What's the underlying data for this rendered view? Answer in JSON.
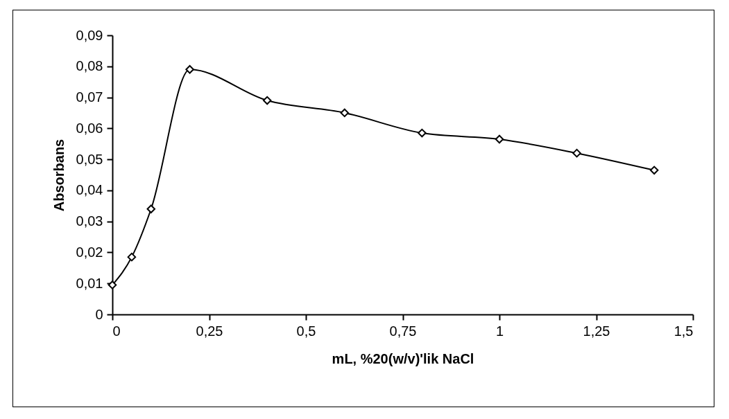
{
  "chart_data": {
    "type": "line",
    "xlabel": "mL, %20(w/v)'lik NaCl",
    "ylabel": "Absorbans",
    "x": [
      0,
      0.05,
      0.1,
      0.2,
      0.4,
      0.6,
      0.8,
      1.0,
      1.2,
      1.4
    ],
    "series": [
      {
        "color": "#000000",
        "values": [
          0.0095,
          0.0185,
          0.034,
          0.079,
          0.069,
          0.065,
          0.0585,
          0.0565,
          0.052,
          0.0465
        ]
      }
    ],
    "xlim": [
      0,
      1.5
    ],
    "xticks": [
      0,
      {
        "value": 0.25,
        "label": "0,25"
      },
      {
        "value": 0.5,
        "label": "0,5"
      },
      {
        "value": 0.75,
        "label": "0,75"
      },
      1,
      {
        "value": 1.25,
        "label": "1,25"
      },
      {
        "value": 1.5,
        "label": "1,5"
      }
    ],
    "ylim": [
      0,
      0.09
    ],
    "yticks": [
      0,
      {
        "value": 0.01,
        "label": "0,01"
      },
      {
        "value": 0.02,
        "label": "0,02"
      },
      {
        "value": 0.03,
        "label": "0,03"
      },
      {
        "value": 0.04,
        "label": "0,04"
      },
      {
        "value": 0.05,
        "label": "0,05"
      },
      {
        "value": 0.06,
        "label": "0,06"
      },
      {
        "value": 0.07,
        "label": "0,07"
      },
      {
        "value": 0.08,
        "label": "0,08"
      },
      {
        "value": 0.09,
        "label": "0,09"
      }
    ],
    "marker": "diamond",
    "grid": false
  }
}
